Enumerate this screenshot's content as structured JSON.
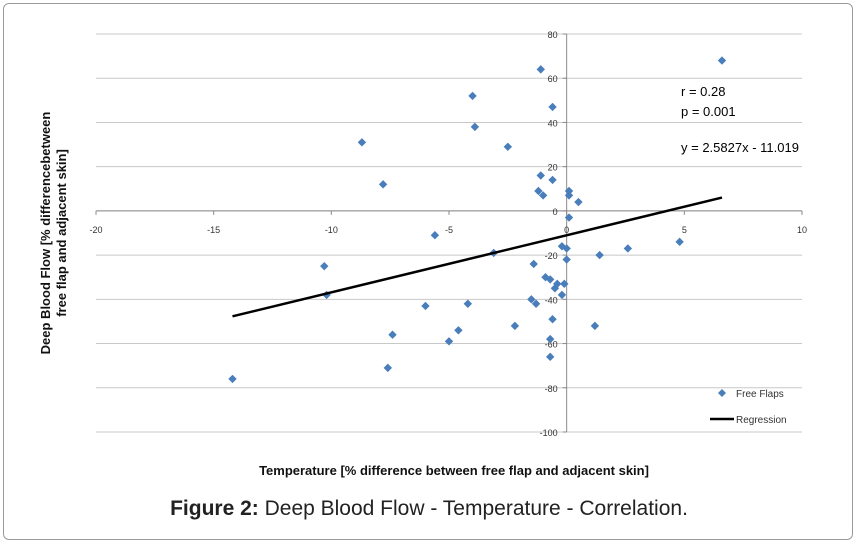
{
  "chart_data": {
    "type": "scatter",
    "title": "",
    "xlabel": "Temperature [% difference between  free flap and adjacent skin]",
    "ylabel_line1": "Deep Blood Flow [% differencebetween",
    "ylabel_line2": "free flap and adjacent skin]",
    "xlim": [
      -20,
      10
    ],
    "ylim": [
      -100,
      80
    ],
    "xticks": [
      -20,
      -15,
      -10,
      -5,
      0,
      5,
      10
    ],
    "yticks": [
      -100,
      -80,
      -60,
      -40,
      -20,
      0,
      20,
      40,
      60,
      80
    ],
    "grid": "horizontal",
    "legend_position": "bottom-right",
    "series": [
      {
        "name": "Free Flaps",
        "color": "#4a7ebb",
        "marker": "diamond",
        "points": [
          [
            -14.2,
            -76
          ],
          [
            -10.3,
            -25
          ],
          [
            -10.2,
            -38
          ],
          [
            -8.7,
            31
          ],
          [
            -7.8,
            12
          ],
          [
            -7.6,
            -71
          ],
          [
            -7.4,
            -56
          ],
          [
            -6.0,
            -43
          ],
          [
            -5.6,
            -11
          ],
          [
            -5.0,
            -59
          ],
          [
            -4.6,
            -54
          ],
          [
            -4.2,
            -42
          ],
          [
            -4.0,
            52
          ],
          [
            -3.9,
            38
          ],
          [
            -3.1,
            -19
          ],
          [
            -2.5,
            29
          ],
          [
            -2.2,
            -52
          ],
          [
            -1.5,
            -40
          ],
          [
            -1.4,
            -24
          ],
          [
            -1.3,
            -42
          ],
          [
            -1.2,
            9
          ],
          [
            -1.1,
            64
          ],
          [
            -1.1,
            16
          ],
          [
            -1.0,
            7
          ],
          [
            -0.9,
            -30
          ],
          [
            -0.7,
            -58
          ],
          [
            -0.7,
            -66
          ],
          [
            -0.7,
            -31
          ],
          [
            -0.6,
            47
          ],
          [
            -0.6,
            14
          ],
          [
            -0.6,
            -49
          ],
          [
            -0.5,
            -35
          ],
          [
            -0.4,
            -33
          ],
          [
            -0.2,
            -16
          ],
          [
            -0.2,
            -38
          ],
          [
            -0.1,
            -33
          ],
          [
            0.0,
            -22
          ],
          [
            0.0,
            -17
          ],
          [
            0.1,
            -3
          ],
          [
            0.1,
            9
          ],
          [
            0.1,
            7
          ],
          [
            0.5,
            4
          ],
          [
            1.2,
            -52
          ],
          [
            1.4,
            -20
          ],
          [
            2.6,
            -17
          ],
          [
            4.8,
            -14
          ],
          [
            6.6,
            68
          ]
        ]
      }
    ],
    "regression": {
      "name": "Regression",
      "color": "#000000",
      "slope": 2.5827,
      "intercept": -11.019,
      "x_range": [
        -14.2,
        6.6
      ]
    },
    "annotations": {
      "r": "r = 0.28",
      "p": "p = 0.001",
      "equation": "y = 2.5827x - 11.019"
    }
  },
  "caption": {
    "bold": "Figure 2:",
    "text": " Deep Blood Flow - Temperature - Correlation."
  }
}
